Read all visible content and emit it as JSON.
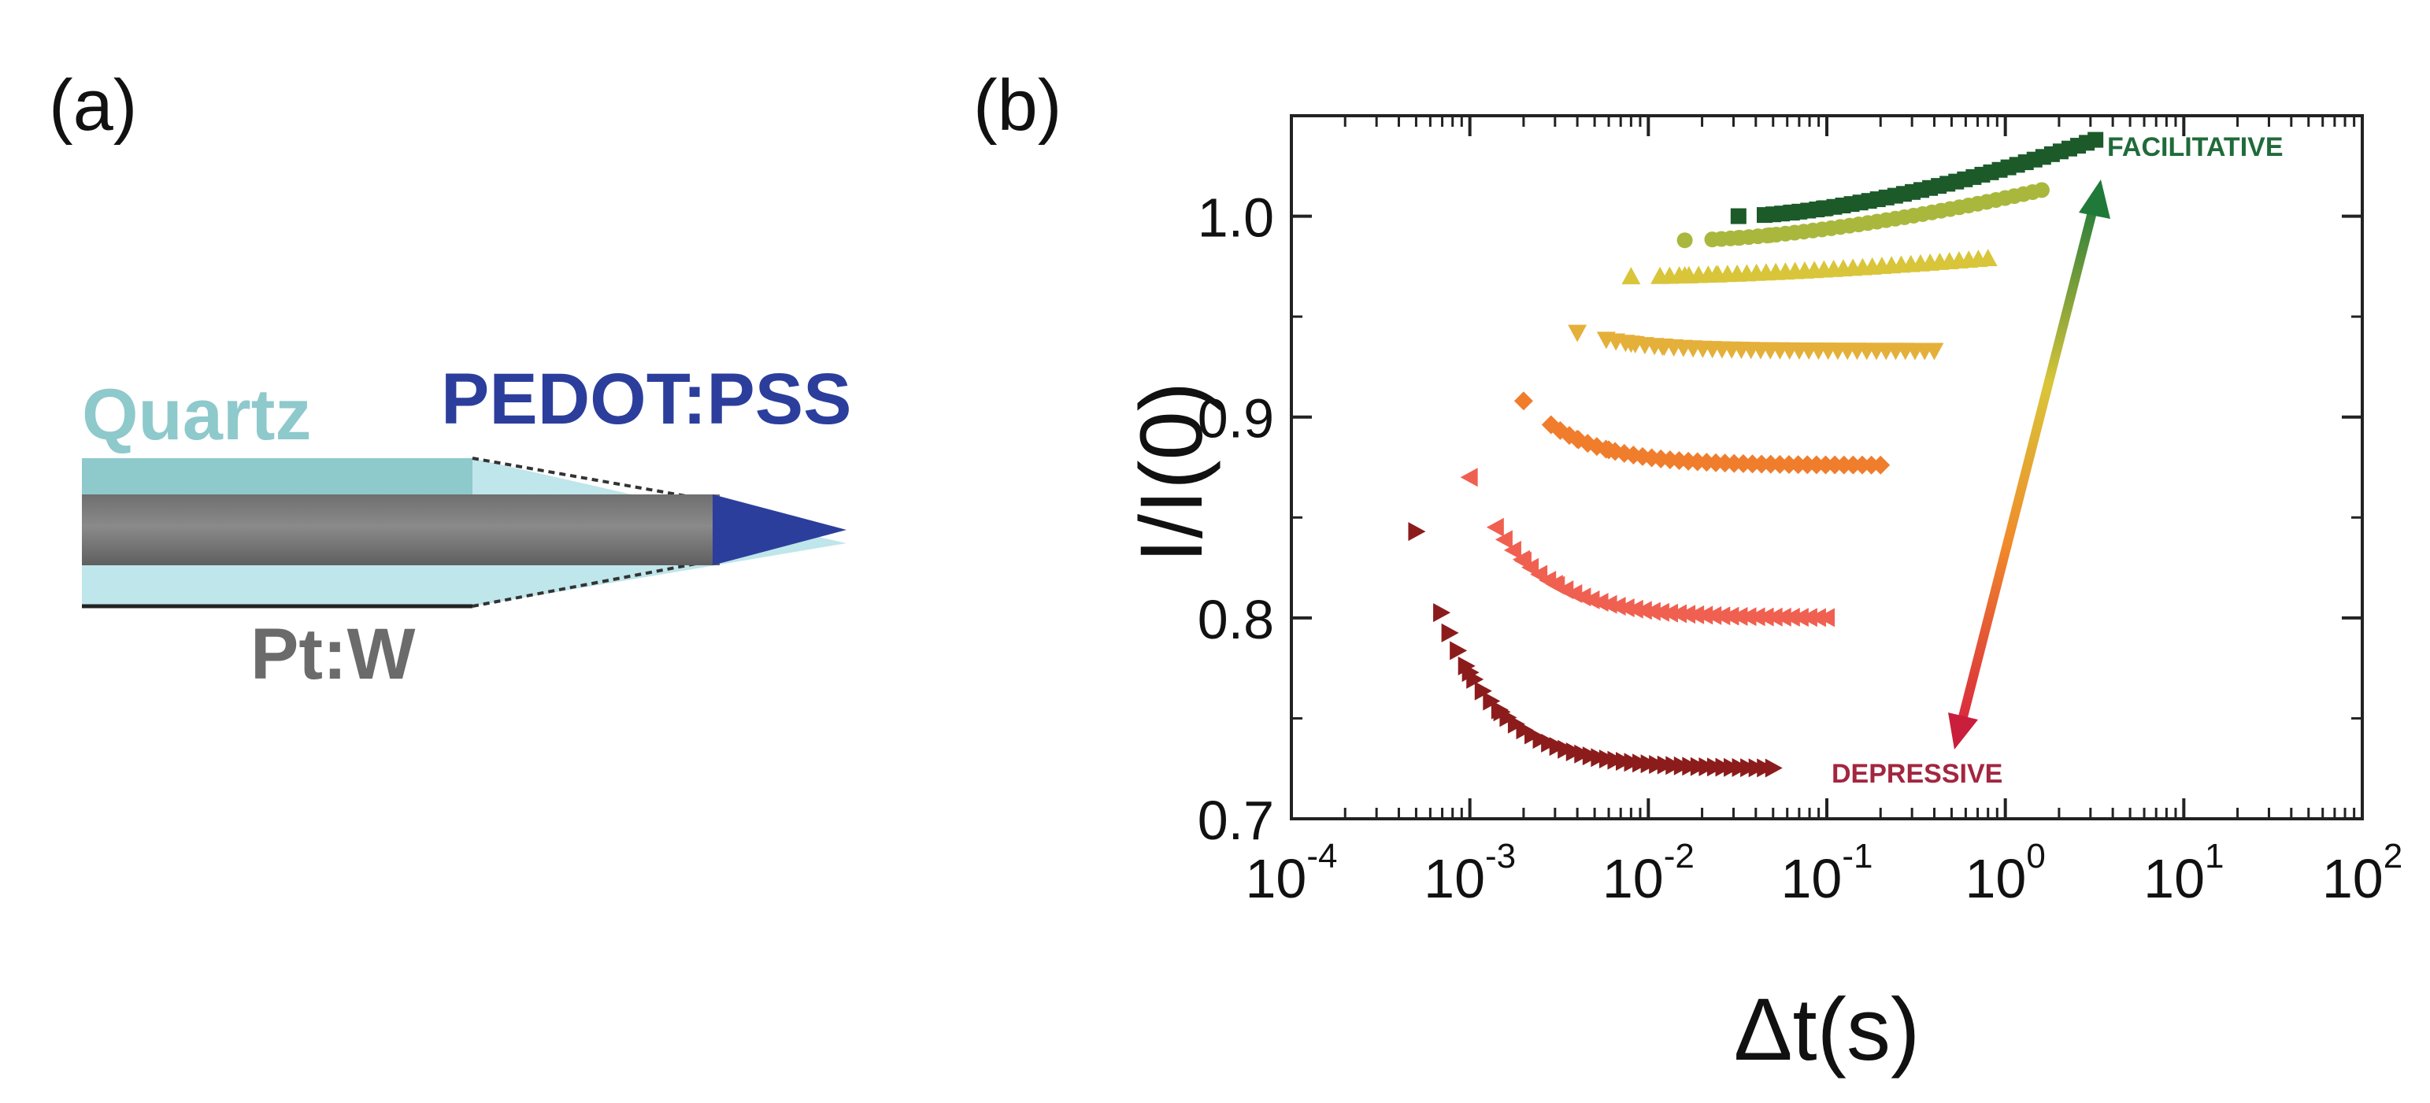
{
  "panels": {
    "a_label": "(a)",
    "b_label": "(b)"
  },
  "diagram": {
    "labels": {
      "quartz": "Quartz",
      "tip": "PEDOT:PSS",
      "wire": "Pt:W"
    },
    "colors": {
      "quartz": "#8ec9cc",
      "quartz_fill": "#bfe6ea",
      "wire": "#7d7d7d",
      "tip": "#2c3e9c",
      "wire_label": "#6b6b6b"
    }
  },
  "chart_data": {
    "type": "scatter",
    "xscale": "log",
    "xlim": [
      0.0001,
      100
    ],
    "ylim": [
      0.7,
      1.05
    ],
    "xlabel": "Δt(s)",
    "ylabel": "I/I(0)",
    "xticks": [
      {
        "value": 0.0001,
        "base": "10",
        "exp": "-4"
      },
      {
        "value": 0.001,
        "base": "10",
        "exp": "-3"
      },
      {
        "value": 0.01,
        "base": "10",
        "exp": "-2"
      },
      {
        "value": 0.1,
        "base": "10",
        "exp": "-1"
      },
      {
        "value": 1,
        "base": "10",
        "exp": "0"
      },
      {
        "value": 10,
        "base": "10",
        "exp": "1"
      },
      {
        "value": 100,
        "base": "10",
        "exp": "2"
      }
    ],
    "yticks": [
      {
        "value": 0.7,
        "label": "0.7"
      },
      {
        "value": 0.8,
        "label": "0.8"
      },
      {
        "value": 0.9,
        "label": "0.9"
      },
      {
        "value": 1.0,
        "label": "1.0"
      }
    ],
    "annotations": {
      "top": "FACILITATIVE",
      "bottom": "DEPRESSIVE",
      "top_color": "#1f6b3a",
      "bottom_color": "#a3263f"
    },
    "series": [
      {
        "marker": "square",
        "color": "#1c5a2a",
        "start_x": 0.032,
        "end_x": 3.2,
        "start_y": 1.0,
        "end_y": 1.038,
        "shape": "rise",
        "points": 42
      },
      {
        "marker": "circle",
        "color": "#a9b83c",
        "start_x": 0.016,
        "end_x": 1.6,
        "start_y": 0.988,
        "end_y": 1.013,
        "shape": "rise",
        "points": 40
      },
      {
        "marker": "triangle-up",
        "color": "#d9c53a",
        "start_x": 0.008,
        "end_x": 0.8,
        "start_y": 0.97,
        "end_y": 0.979,
        "shape": "rise",
        "points": 38
      },
      {
        "marker": "triangle-down",
        "color": "#e4b03a",
        "start_x": 0.004,
        "end_x": 0.4,
        "start_y": 0.942,
        "end_y": 0.933,
        "shape": "decay",
        "points": 38
      },
      {
        "marker": "diamond",
        "color": "#f07d2c",
        "start_x": 0.002,
        "end_x": 0.2,
        "start_y": 0.908,
        "end_y": 0.876,
        "shape": "decay",
        "points": 40
      },
      {
        "marker": "triangle-left",
        "color": "#f06050",
        "start_x": 0.001,
        "end_x": 0.1,
        "start_y": 0.87,
        "end_y": 0.8,
        "shape": "decay",
        "points": 42
      },
      {
        "marker": "triangle-right",
        "color": "#8c1c1c",
        "start_x": 0.0005,
        "end_x": 0.05,
        "start_y": 0.843,
        "end_y": 0.725,
        "shape": "decay",
        "points": 44
      }
    ]
  }
}
